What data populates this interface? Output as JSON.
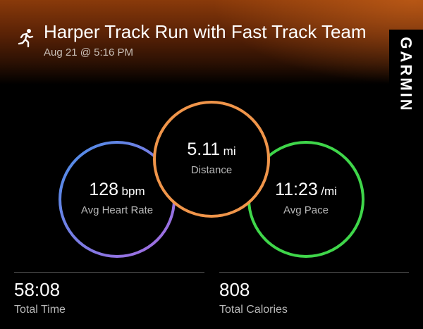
{
  "activity": {
    "title": "Harper Track Run with Fast Track Team",
    "datetime": "Aug 21 @ 5:16 PM",
    "icon": "running-person-icon"
  },
  "brand": {
    "name": "GARMIN"
  },
  "metrics": {
    "distance": {
      "value": "5.11",
      "unit": "mi",
      "label": "Distance",
      "ring_color": "#f0954a"
    },
    "heart_rate": {
      "value": "128",
      "unit": "bpm",
      "label": "Avg Heart Rate",
      "ring_color_start": "#4a8fe8",
      "ring_color_end": "#a070e0"
    },
    "pace": {
      "value": "11:23",
      "unit": "/mi",
      "label": "Avg Pace",
      "ring_color": "#3fd64a"
    }
  },
  "stats": {
    "total_time": {
      "value": "58:08",
      "label": "Total Time"
    },
    "total_calories": {
      "value": "808",
      "label": "Total Calories"
    }
  }
}
